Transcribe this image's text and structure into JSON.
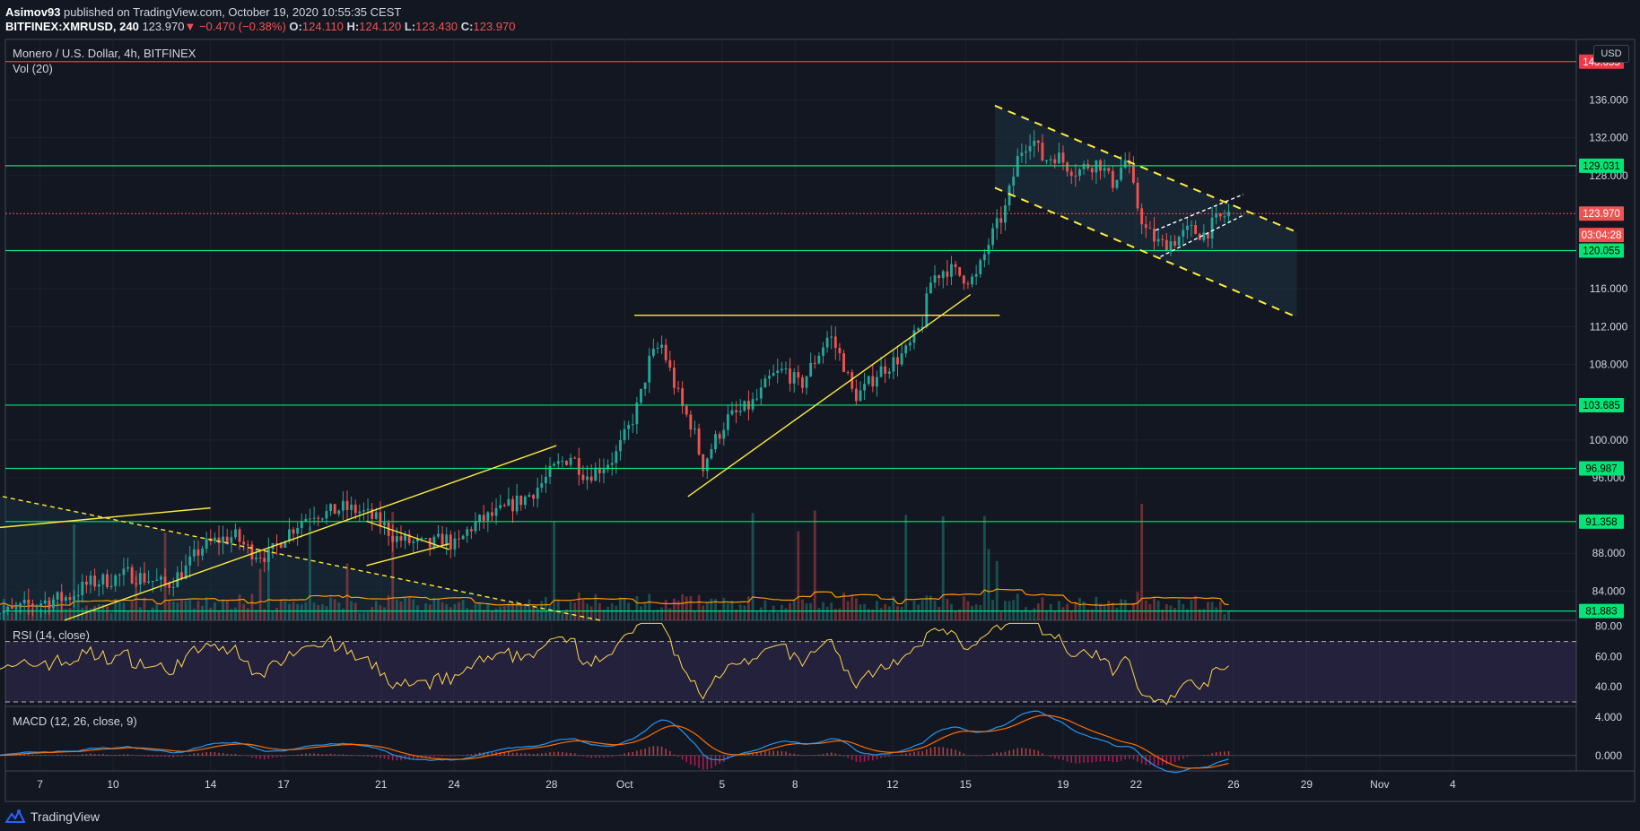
{
  "header": {
    "publisher": "Asimov93",
    "published_text": "published on TradingView.com, October 19, 2020 10:55:35 CEST",
    "symbol": "BITFINEX:XMRUSD, 240",
    "last": "123.970",
    "change_arrow": "▼",
    "change": "−0.470 (−0.38%)",
    "o_label": "O:",
    "o": "124.110",
    "h_label": "H:",
    "h": "124.120",
    "l_label": "L:",
    "l": "123.430",
    "c_label": "C:",
    "c": "123.970"
  },
  "main_pane": {
    "title": "Monero / U.S. Dollar, 4h, BITFINEX",
    "volume_label": "Vol (20)",
    "currency_button": "USD"
  },
  "rsi_pane": {
    "label": "RSI (14, close)"
  },
  "macd_pane": {
    "label": "MACD (12, 26, close, 9)"
  },
  "footer": {
    "brand": "TradingView",
    "logo_icon": "tradingview-logo-icon"
  },
  "price_badges": [
    {
      "value": "140.055",
      "color": "#f23645",
      "price": 140.055
    },
    {
      "value": "129.031",
      "color": "#00e676",
      "price": 129.031
    },
    {
      "value": "123.970",
      "color": "#ef5350",
      "price": 123.97
    },
    {
      "value": "03:04:28",
      "color": "#ef5350",
      "price": 121.7
    },
    {
      "value": "120.055",
      "color": "#00e676",
      "price": 120.055
    },
    {
      "value": "103.685",
      "color": "#00e676",
      "price": 103.685
    },
    {
      "value": "96.987",
      "color": "#00e676",
      "price": 96.987
    },
    {
      "value": "91.358",
      "color": "#00e676",
      "price": 91.358
    },
    {
      "value": "81.883",
      "color": "#00e676",
      "price": 81.883
    }
  ],
  "chart_data": {
    "type": "candlestick",
    "price_axis": {
      "ticks": [
        "136.000",
        "132.000",
        "128.000",
        "116.000",
        "112.000",
        "108.000",
        "100.000",
        "96.000",
        "88.000",
        "84.000"
      ],
      "tick_values": [
        136,
        132,
        128,
        116,
        112,
        108,
        100,
        96,
        88,
        84
      ],
      "range": [
        80.9,
        142.5
      ]
    },
    "rsi_axis": {
      "ticks": [
        "80.00",
        "60.00",
        "40.00"
      ],
      "tick_values": [
        80,
        60,
        40
      ],
      "range": [
        27,
        84
      ],
      "band": [
        30,
        70
      ]
    },
    "macd_axis": {
      "ticks": [
        "4.000",
        "0.000"
      ],
      "tick_values": [
        4,
        0
      ],
      "range": [
        -1.6,
        5.1
      ]
    },
    "time_axis": {
      "ticks": [
        "7",
        "10",
        "14",
        "17",
        "21",
        "24",
        "28",
        "Oct",
        "5",
        "8",
        "12",
        "15",
        "19",
        "22",
        "26",
        "29",
        "Nov",
        "4"
      ],
      "tick_days": [
        7,
        10,
        14,
        17,
        21,
        24,
        28,
        31,
        35,
        38,
        42,
        45,
        49,
        52,
        56,
        59,
        62,
        65
      ],
      "note": "days counted from Sep 1"
    },
    "horizontal_levels": [
      {
        "price": 140.055,
        "color": "#f23645"
      },
      {
        "price": 129.031,
        "color": "#00e676"
      },
      {
        "price": 120.055,
        "color": "#00e676"
      },
      {
        "price": 103.685,
        "color": "#00e676"
      },
      {
        "price": 96.987,
        "color": "#00e676"
      },
      {
        "price": 91.358,
        "color": "#00e676"
      },
      {
        "price": 81.883,
        "color": "#00e676"
      }
    ],
    "last_price_line": 123.97,
    "price_path": [
      [
        5.0,
        82.2
      ],
      [
        5.8,
        81.7
      ],
      [
        6.6,
        82.6
      ],
      [
        7.4,
        83.0
      ],
      [
        8.2,
        83.4
      ],
      [
        9.0,
        84.8
      ],
      [
        9.8,
        85.2
      ],
      [
        10.6,
        85.8
      ],
      [
        11.4,
        85.3
      ],
      [
        12.2,
        84.6
      ],
      [
        13.0,
        86.4
      ],
      [
        13.6,
        88.6
      ],
      [
        14.3,
        89.4
      ],
      [
        15.0,
        89.8
      ],
      [
        15.6,
        88.3
      ],
      [
        16.4,
        87.7
      ],
      [
        17.0,
        89.8
      ],
      [
        17.6,
        91.2
      ],
      [
        18.2,
        92.4
      ],
      [
        18.8,
        92.2
      ],
      [
        19.4,
        92.8
      ],
      [
        20.2,
        92.4
      ],
      [
        21.0,
        91.2
      ],
      [
        21.6,
        89.6
      ],
      [
        22.3,
        89.1
      ],
      [
        23.0,
        88.8
      ],
      [
        23.6,
        89.6
      ],
      [
        24.1,
        88.6
      ],
      [
        24.6,
        90.6
      ],
      [
        25.2,
        91.6
      ],
      [
        25.8,
        92.2
      ],
      [
        26.4,
        93.2
      ],
      [
        27.0,
        94.0
      ],
      [
        27.6,
        95.4
      ],
      [
        28.2,
        97.2
      ],
      [
        28.8,
        98.4
      ],
      [
        29.4,
        96.2
      ],
      [
        30.0,
        97.1
      ],
      [
        30.6,
        98.2
      ],
      [
        31.2,
        101.4
      ],
      [
        31.6,
        104.0
      ],
      [
        32.0,
        108.3
      ],
      [
        32.5,
        110.2
      ],
      [
        33.0,
        106.2
      ],
      [
        33.4,
        103.2
      ],
      [
        33.8,
        101.4
      ],
      [
        34.2,
        97.2
      ],
      [
        34.6,
        99.4
      ],
      [
        35.2,
        102.2
      ],
      [
        35.8,
        103.0
      ],
      [
        36.4,
        104.2
      ],
      [
        37.0,
        106.6
      ],
      [
        37.6,
        107.4
      ],
      [
        38.2,
        105.6
      ],
      [
        38.8,
        108.4
      ],
      [
        39.4,
        111.2
      ],
      [
        40.0,
        108.0
      ],
      [
        40.4,
        104.6
      ],
      [
        40.8,
        105.2
      ],
      [
        41.4,
        107.2
      ],
      [
        42.0,
        108.2
      ],
      [
        42.6,
        109.4
      ],
      [
        43.2,
        112.2
      ],
      [
        43.6,
        117.1
      ],
      [
        44.2,
        118.2
      ],
      [
        44.8,
        117.4
      ],
      [
        45.4,
        116.9
      ],
      [
        46.0,
        121.2
      ],
      [
        46.6,
        124.2
      ],
      [
        47.2,
        130.4
      ],
      [
        47.7,
        132.2
      ],
      [
        48.2,
        129.6
      ],
      [
        48.7,
        130.2
      ],
      [
        49.2,
        129.0
      ],
      [
        49.6,
        128.4
      ],
      [
        50.0,
        129.1
      ],
      [
        50.5,
        129.4
      ],
      [
        51.0,
        127.1
      ],
      [
        51.6,
        129.8
      ],
      [
        52.0,
        125.2
      ],
      [
        52.4,
        122.2
      ],
      [
        53.0,
        120.6
      ],
      [
        53.6,
        121.2
      ],
      [
        54.2,
        122.2
      ],
      [
        54.8,
        121.8
      ],
      [
        55.3,
        123.2
      ],
      [
        55.8,
        124.0
      ]
    ],
    "annotations": {
      "resistance_line": {
        "price": 113.2,
        "from_day": 31.4,
        "to_day": 46.4
      },
      "channel_upper": [
        [
          46.2,
          135.4
        ],
        [
          58.6,
          122.0
        ]
      ],
      "channel_lower": [
        [
          46.2,
          126.7
        ],
        [
          58.6,
          113.0
        ]
      ],
      "rising_trend": [
        [
          33.6,
          94.0
        ],
        [
          45.2,
          115.4
        ]
      ],
      "bear_flag_upper": [
        [
          52.8,
          122.2
        ],
        [
          56.4,
          126.0
        ]
      ],
      "bear_flag_lower": [
        [
          53.0,
          119.4
        ],
        [
          56.4,
          123.8
        ]
      ],
      "descending_dotted": [
        [
          0.6,
          96.6
        ],
        [
          30.0,
          80.9
        ]
      ],
      "support_lines": [
        [
          [
            0.6,
            89.6
          ],
          [
            14.0,
            92.8
          ]
        ],
        [
          [
            8.0,
            80.9
          ],
          [
            28.2,
            99.4
          ]
        ],
        [
          [
            20.4,
            86.7
          ],
          [
            23.8,
            89.0
          ]
        ],
        [
          [
            20.4,
            91.4
          ],
          [
            23.8,
            88.4
          ]
        ]
      ]
    }
  }
}
